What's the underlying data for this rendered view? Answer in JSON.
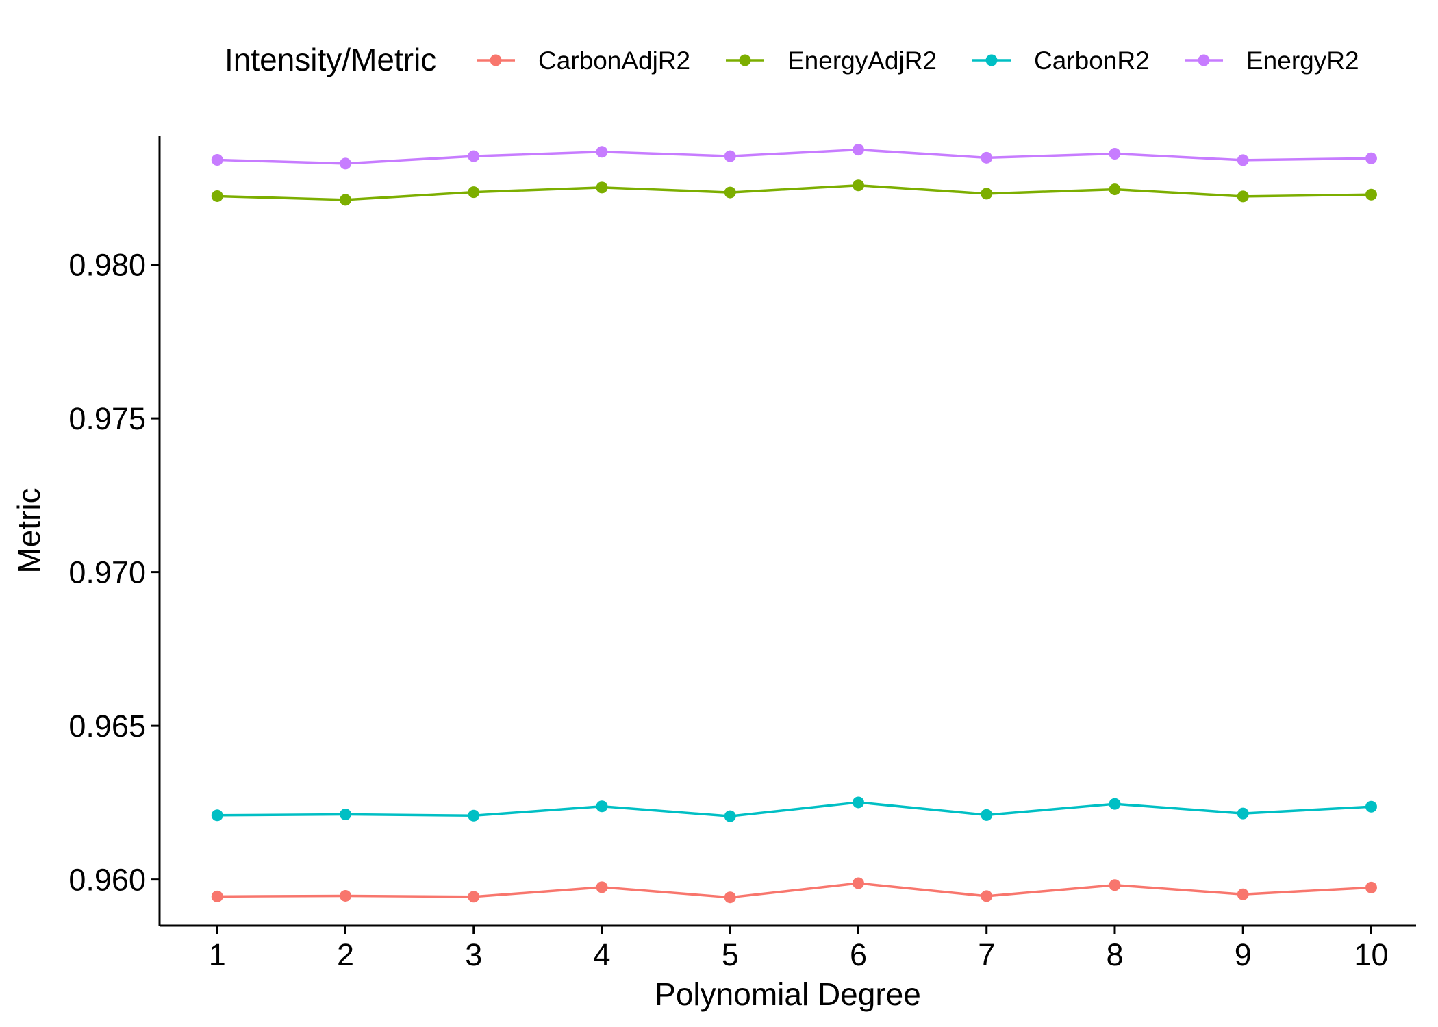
{
  "chart_data": {
    "type": "line",
    "title": "",
    "xlabel": "Polynomial Degree",
    "ylabel": "Metric",
    "x": [
      1,
      2,
      3,
      4,
      5,
      6,
      7,
      8,
      9,
      10
    ],
    "x_ticks": [
      "1",
      "2",
      "3",
      "4",
      "5",
      "6",
      "7",
      "8",
      "9",
      "10"
    ],
    "xlim": [
      0.55,
      10.35
    ],
    "ylim": [
      0.9585,
      0.9842
    ],
    "y_ticks": [
      0.96,
      0.965,
      0.97,
      0.975,
      0.98
    ],
    "y_tick_labels": [
      "0.960",
      "0.965",
      "0.970",
      "0.975",
      "0.980"
    ],
    "grid": false,
    "legend": {
      "title": "Intensity/Metric",
      "position": "top"
    },
    "series": [
      {
        "name": "CarbonAdjR2",
        "color": "#F8766D",
        "values": [
          0.95945,
          0.95947,
          0.95944,
          0.95975,
          0.95942,
          0.95988,
          0.95946,
          0.95982,
          0.95952,
          0.95974
        ]
      },
      {
        "name": "EnergyAdjR2",
        "color": "#7CAE00",
        "values": [
          0.98223,
          0.98211,
          0.98236,
          0.98251,
          0.98235,
          0.98258,
          0.98231,
          0.98245,
          0.98222,
          0.98228
        ]
      },
      {
        "name": "CarbonR2",
        "color": "#00BFC4",
        "values": [
          0.96209,
          0.96212,
          0.96208,
          0.96238,
          0.96206,
          0.96251,
          0.9621,
          0.96246,
          0.96215,
          0.96237
        ]
      },
      {
        "name": "EnergyR2",
        "color": "#C77CFF",
        "values": [
          0.98341,
          0.98329,
          0.98353,
          0.98367,
          0.98353,
          0.98374,
          0.98348,
          0.98361,
          0.9834,
          0.98346
        ]
      }
    ]
  }
}
